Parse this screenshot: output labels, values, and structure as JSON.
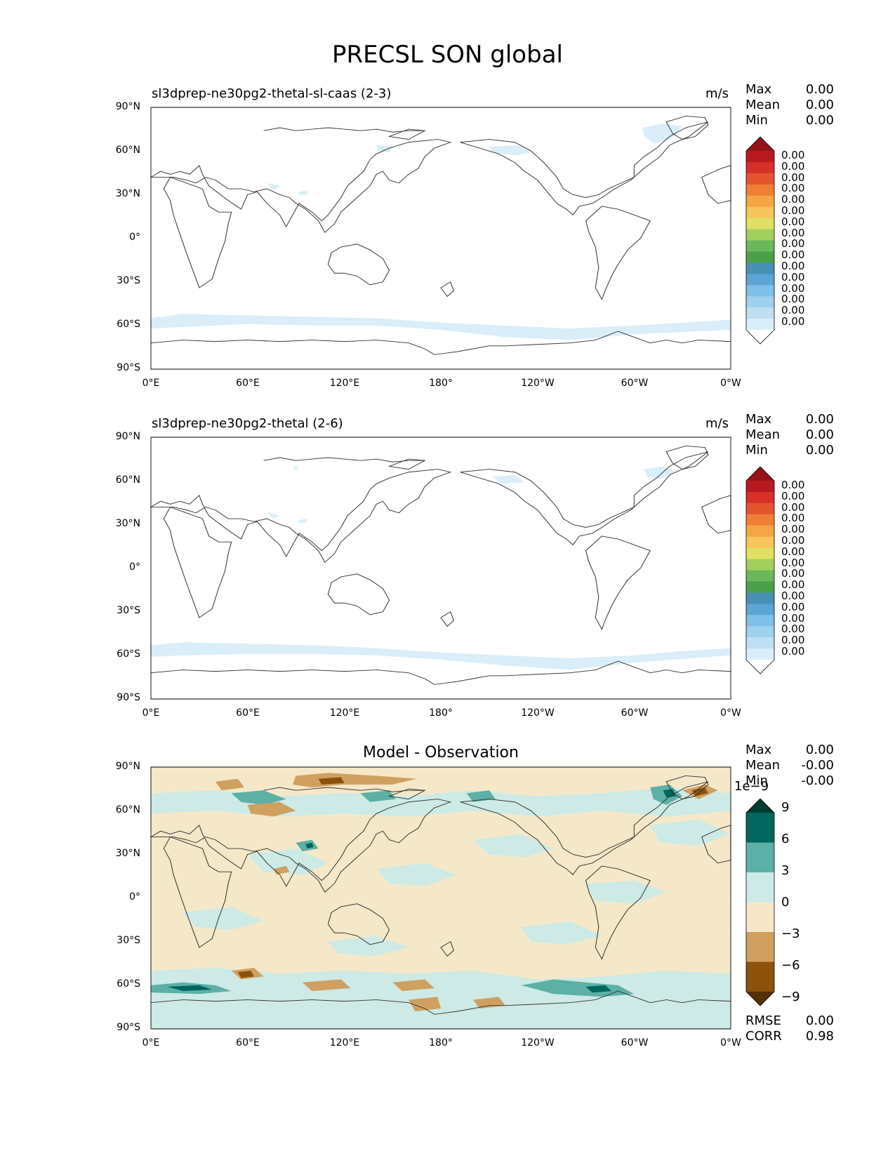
{
  "figure": {
    "title": "PRECSL SON global"
  },
  "x_ticks": [
    "0°E",
    "60°E",
    "120°E",
    "180°",
    "120°W",
    "60°W",
    "0°W"
  ],
  "y_ticks": [
    "90°N",
    "60°N",
    "30°N",
    "0°",
    "30°S",
    "60°S",
    "90°S"
  ],
  "stat_labels": {
    "max": "Max",
    "mean": "Mean",
    "min": "Min",
    "rmse": "RMSE",
    "corr": "CORR"
  },
  "panels": [
    {
      "title": "sl3dprep-ne30pg2-thetal-sl-caas (2-3)",
      "units": "m/s",
      "stats": {
        "max": "0.00",
        "mean": "0.00",
        "min": "0.00"
      },
      "colorbar_labels": [
        "0.00",
        "0.00",
        "0.00",
        "0.00",
        "0.00",
        "0.00",
        "0.00",
        "0.00",
        "0.00",
        "0.00",
        "0.00",
        "0.00",
        "0.00",
        "0.00",
        "0.00",
        "0.00"
      ]
    },
    {
      "title": "sl3dprep-ne30pg2-thetal (2-6)",
      "units": "m/s",
      "stats": {
        "max": "0.00",
        "mean": "0.00",
        "min": "0.00"
      },
      "colorbar_labels": [
        "0.00",
        "0.00",
        "0.00",
        "0.00",
        "0.00",
        "0.00",
        "0.00",
        "0.00",
        "0.00",
        "0.00",
        "0.00",
        "0.00",
        "0.00",
        "0.00",
        "0.00",
        "0.00"
      ]
    },
    {
      "title": "Model - Observation",
      "units": "",
      "stats": {
        "max": "0.00",
        "mean": "-0.00",
        "min": "-0.00",
        "rmse": "0.00",
        "corr": "0.98"
      },
      "colorbar_scale": "1e−9",
      "colorbar_labels": [
        "9",
        "6",
        "3",
        "0",
        "−3",
        "−6",
        "−9"
      ]
    }
  ],
  "colors": {
    "precip_scale": [
      "#ffffff",
      "#d9eef8",
      "#bfe0f3",
      "#9fd0ee",
      "#7fbfe8",
      "#5aa5d5",
      "#4890b4",
      "#4aa04a",
      "#6bb85a",
      "#a3cf5c",
      "#e1e063",
      "#f7c55b",
      "#f6a545",
      "#f07f35",
      "#e4552f",
      "#d73028",
      "#b8191f",
      "#941318"
    ],
    "diff_scale": [
      "#543005",
      "#8c510a",
      "#cfa060",
      "#f5e8c8",
      "#cdeae6",
      "#5cb0a6",
      "#01665e",
      "#003c30"
    ],
    "coast": "#333333"
  }
}
